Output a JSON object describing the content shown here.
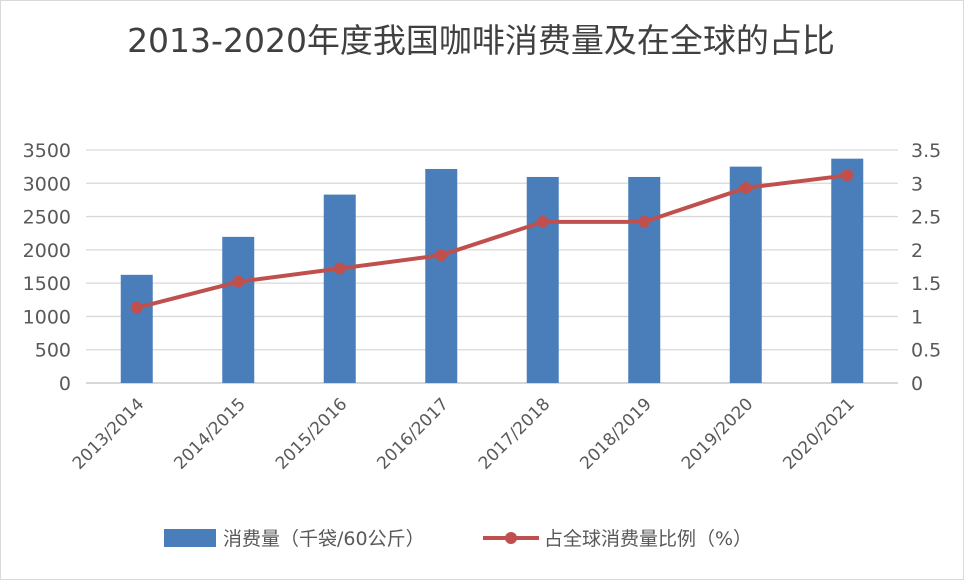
{
  "chart_data": {
    "type": "bar+line",
    "title": "2013-2020年度我国咖啡消费量及在全球的占比",
    "categories": [
      "2013/2014",
      "2014/2015",
      "2015/2016",
      "2016/2017",
      "2017/2018",
      "2018/2019",
      "2019/2020",
      "2020/2021"
    ],
    "series": [
      {
        "name": "消费量（千袋/60公斤）",
        "type": "bar",
        "axis": "left",
        "color": "#4a7ebb",
        "values": [
          1625,
          2195,
          2830,
          3215,
          3095,
          3095,
          3250,
          3370
        ]
      },
      {
        "name": "占全球消费量比例（%）",
        "type": "line",
        "axis": "right",
        "color": "#c0504d",
        "values": [
          1.13,
          1.52,
          1.72,
          1.92,
          2.42,
          2.42,
          2.93,
          3.12
        ]
      }
    ],
    "ylim_left": [
      0,
      3500
    ],
    "ylim_right": [
      0,
      3.5
    ],
    "left_ticks": [
      "0",
      "500",
      "1000",
      "1500",
      "2000",
      "2500",
      "3000",
      "3500"
    ],
    "right_ticks": [
      "0",
      "0.5",
      "1",
      "1.5",
      "2",
      "2.5",
      "3",
      "3.5"
    ],
    "grid": true,
    "legend": "bottom"
  }
}
